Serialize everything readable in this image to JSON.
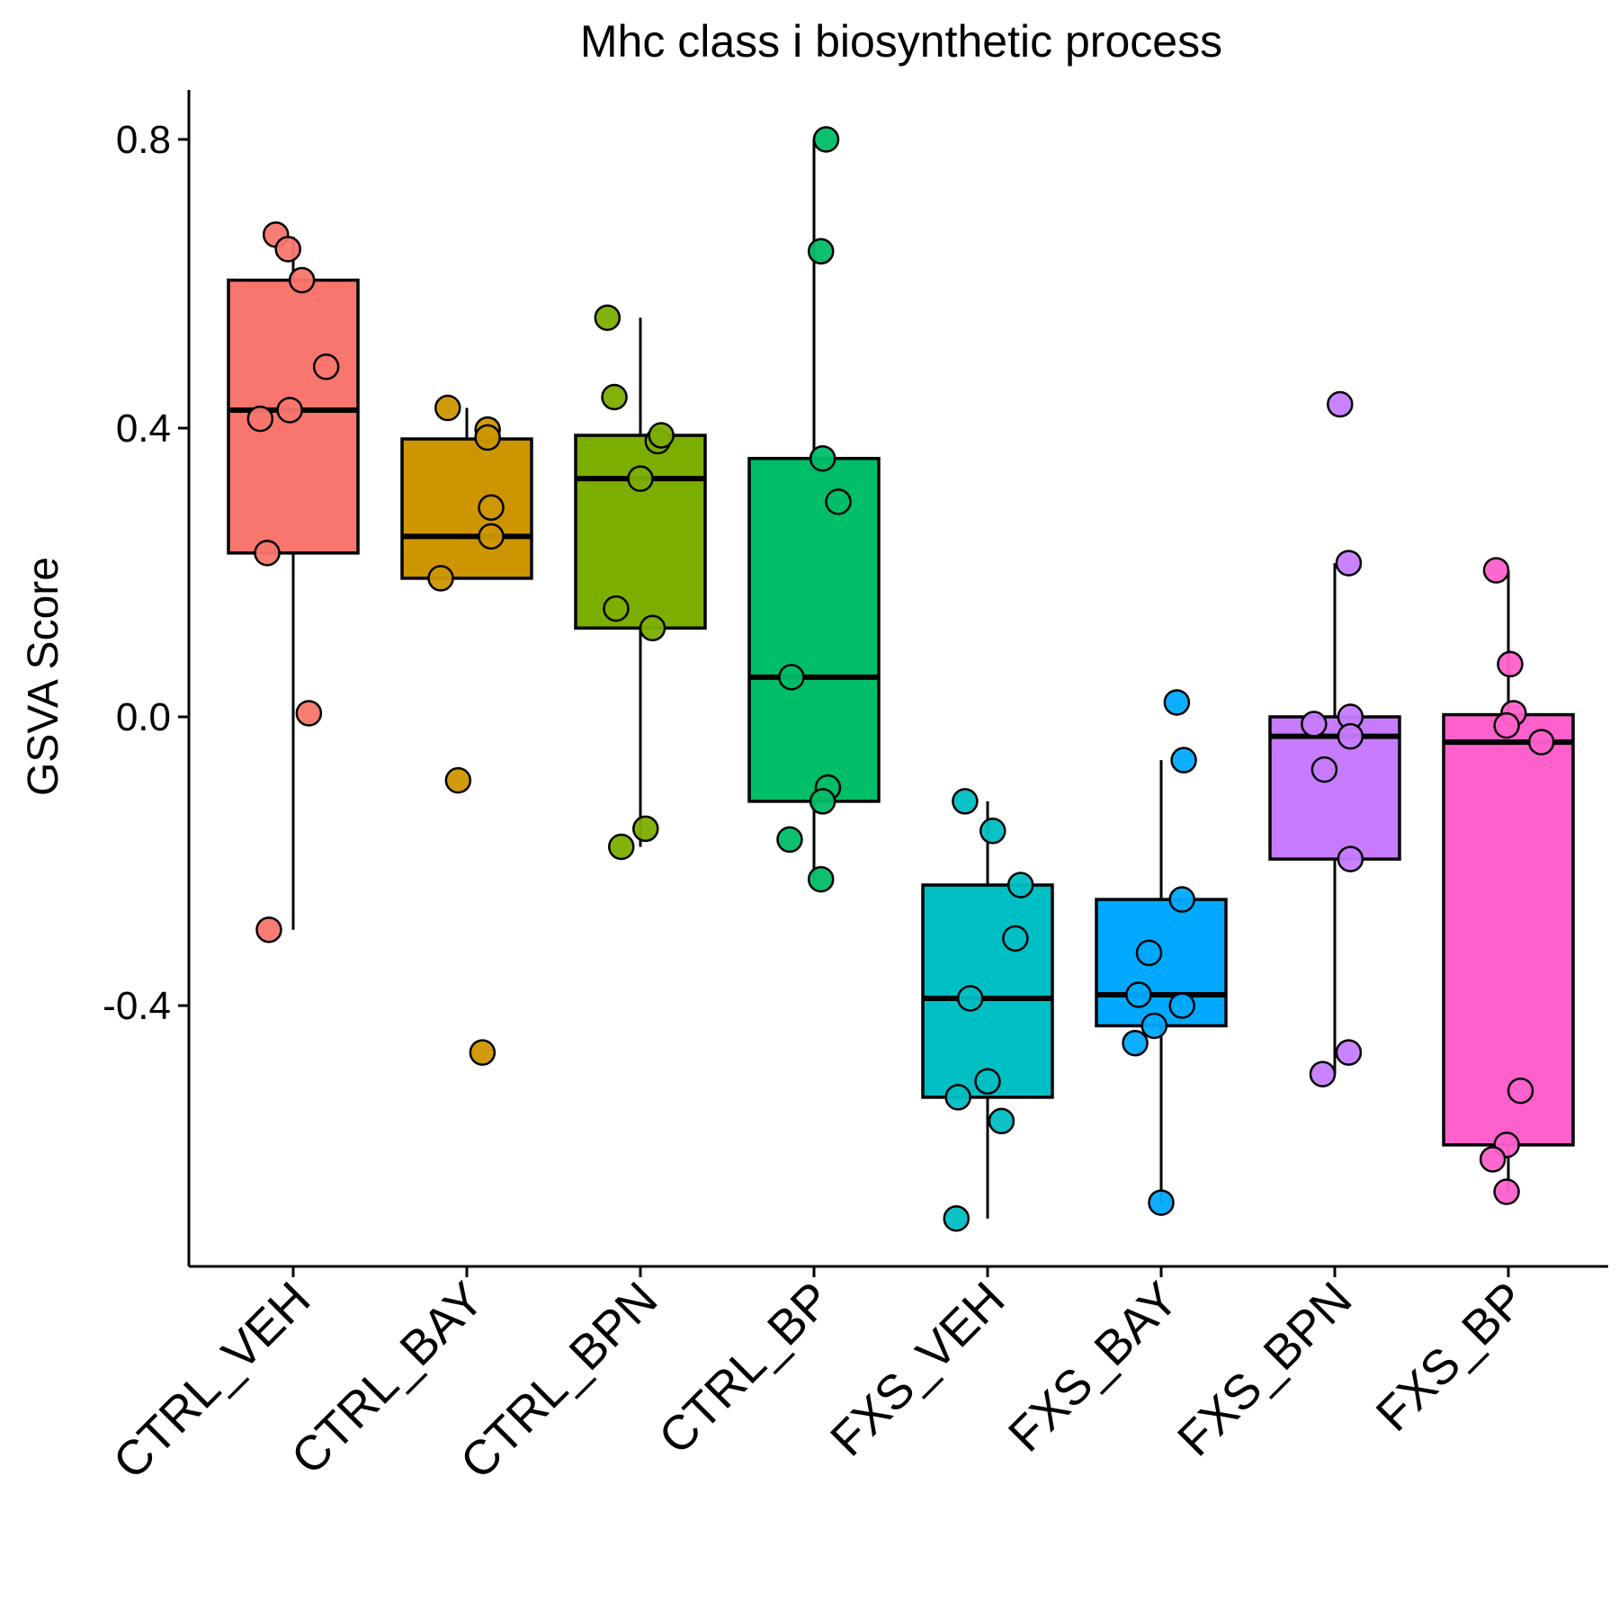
{
  "chart_data": {
    "type": "box",
    "title": "Mhc class i biosynthetic process",
    "xlabel": "",
    "ylabel": "GSVA Score",
    "ylim": [
      -0.77,
      0.87
    ],
    "yticks": [
      -0.4,
      0.0,
      0.4,
      0.8
    ],
    "ytick_labels": [
      "-0.4",
      "0.0",
      "0.4",
      "0.8"
    ],
    "grid": false,
    "legend": "none",
    "categories": [
      "CTRL_VEH",
      "CTRL_BAY",
      "CTRL_BPN",
      "CTRL_BP",
      "FXS_VEH",
      "FXS_BAY",
      "FXS_BPN",
      "FXS_BP"
    ],
    "colors": [
      "#F8766D",
      "#CD9600",
      "#7CAE00",
      "#00BE67",
      "#00BFC4",
      "#00A9FF",
      "#C77CFF",
      "#FF61CC"
    ],
    "boxes": [
      {
        "q1": 0.227,
        "median": 0.425,
        "q3": 0.605,
        "whisker_low": -0.295,
        "whisker_high": 0.665
      },
      {
        "q1": 0.192,
        "median": 0.25,
        "q3": 0.385,
        "whisker_low": 0.192,
        "whisker_high": 0.428
      },
      {
        "q1": 0.123,
        "median": 0.33,
        "q3": 0.39,
        "whisker_low": -0.18,
        "whisker_high": 0.553
      },
      {
        "q1": -0.117,
        "median": 0.055,
        "q3": 0.358,
        "whisker_low": -0.225,
        "whisker_high": 0.8
      },
      {
        "q1": -0.527,
        "median": -0.39,
        "q3": -0.233,
        "whisker_low": -0.695,
        "whisker_high": -0.117
      },
      {
        "q1": -0.428,
        "median": -0.385,
        "q3": -0.253,
        "whisker_low": -0.673,
        "whisker_high": -0.06
      },
      {
        "q1": -0.197,
        "median": -0.027,
        "q3": 0.0,
        "whisker_low": -0.495,
        "whisker_high": 0.213
      },
      {
        "q1": -0.593,
        "median": -0.035,
        "q3": 0.003,
        "whisker_low": -0.658,
        "whisker_high": 0.203
      }
    ],
    "points": [
      [
        {
          "x": -0.1,
          "y": 0.668
        },
        {
          "x": -0.03,
          "y": 0.648
        },
        {
          "x": 0.05,
          "y": 0.605
        },
        {
          "x": 0.19,
          "y": 0.485
        },
        {
          "x": -0.19,
          "y": 0.413
        },
        {
          "x": -0.02,
          "y": 0.425
        },
        {
          "x": -0.15,
          "y": 0.227
        },
        {
          "x": 0.09,
          "y": 0.005
        },
        {
          "x": -0.14,
          "y": -0.295
        }
      ],
      [
        {
          "x": -0.11,
          "y": 0.428
        },
        {
          "x": 0.12,
          "y": 0.398
        },
        {
          "x": 0.12,
          "y": 0.387
        },
        {
          "x": 0.14,
          "y": 0.29
        },
        {
          "x": 0.14,
          "y": 0.25
        },
        {
          "x": -0.15,
          "y": 0.192
        },
        {
          "x": -0.05,
          "y": -0.088
        },
        {
          "x": 0.09,
          "y": -0.465
        }
      ],
      [
        {
          "x": -0.19,
          "y": 0.553
        },
        {
          "x": -0.15,
          "y": 0.443
        },
        {
          "x": 0.1,
          "y": 0.382
        },
        {
          "x": 0.12,
          "y": 0.39
        },
        {
          "x": 0.0,
          "y": 0.33
        },
        {
          "x": -0.14,
          "y": 0.15
        },
        {
          "x": 0.07,
          "y": 0.123
        },
        {
          "x": 0.03,
          "y": -0.155
        },
        {
          "x": -0.11,
          "y": -0.18
        }
      ],
      [
        {
          "x": 0.07,
          "y": 0.8
        },
        {
          "x": 0.04,
          "y": 0.645
        },
        {
          "x": 0.05,
          "y": 0.358
        },
        {
          "x": 0.14,
          "y": 0.298
        },
        {
          "x": -0.13,
          "y": 0.055
        },
        {
          "x": 0.08,
          "y": -0.098
        },
        {
          "x": 0.05,
          "y": -0.117
        },
        {
          "x": -0.14,
          "y": -0.17
        },
        {
          "x": 0.04,
          "y": -0.225
        }
      ],
      [
        {
          "x": -0.13,
          "y": -0.117
        },
        {
          "x": 0.03,
          "y": -0.158
        },
        {
          "x": 0.19,
          "y": -0.233
        },
        {
          "x": 0.16,
          "y": -0.307
        },
        {
          "x": -0.1,
          "y": -0.39
        },
        {
          "x": 0.0,
          "y": -0.505
        },
        {
          "x": -0.17,
          "y": -0.527
        },
        {
          "x": 0.08,
          "y": -0.56
        },
        {
          "x": -0.18,
          "y": -0.695
        }
      ],
      [
        {
          "x": 0.09,
          "y": 0.02
        },
        {
          "x": 0.13,
          "y": -0.06
        },
        {
          "x": 0.12,
          "y": -0.253
        },
        {
          "x": -0.07,
          "y": -0.327
        },
        {
          "x": -0.13,
          "y": -0.385
        },
        {
          "x": 0.12,
          "y": -0.4
        },
        {
          "x": -0.04,
          "y": -0.428
        },
        {
          "x": -0.15,
          "y": -0.452
        },
        {
          "x": 0.0,
          "y": -0.673
        }
      ],
      [
        {
          "x": 0.03,
          "y": 0.433
        },
        {
          "x": 0.08,
          "y": 0.213
        },
        {
          "x": -0.12,
          "y": -0.01
        },
        {
          "x": 0.09,
          "y": 0.0
        },
        {
          "x": 0.09,
          "y": -0.027
        },
        {
          "x": -0.06,
          "y": -0.073
        },
        {
          "x": 0.09,
          "y": -0.197
        },
        {
          "x": 0.08,
          "y": -0.465
        },
        {
          "x": -0.07,
          "y": -0.495
        }
      ],
      [
        {
          "x": -0.07,
          "y": 0.203
        },
        {
          "x": 0.01,
          "y": 0.073
        },
        {
          "x": 0.03,
          "y": 0.005
        },
        {
          "x": -0.01,
          "y": -0.012
        },
        {
          "x": 0.19,
          "y": -0.035
        },
        {
          "x": 0.07,
          "y": -0.518
        },
        {
          "x": -0.01,
          "y": -0.593
        },
        {
          "x": -0.09,
          "y": -0.613
        },
        {
          "x": -0.01,
          "y": -0.658
        }
      ]
    ]
  }
}
